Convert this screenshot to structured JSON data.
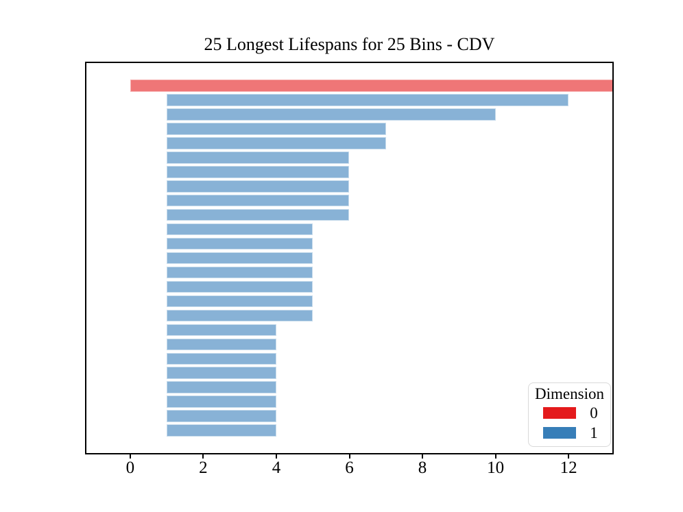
{
  "figure": {
    "background": "#ffffff"
  },
  "chart_data": {
    "type": "bar",
    "orientation": "horizontal",
    "title": "25 Longest Lifespans for 25 Bins - CDV",
    "xlabel": "",
    "ylabel": "",
    "xlim": [
      -1.2,
      13.2
    ],
    "x_ticks": [
      0,
      2,
      4,
      6,
      8,
      10,
      12
    ],
    "y_ticks": [],
    "grid": false,
    "n_bars": 25,
    "bars_note": "bars are [start,end] lifespan intervals, longest to shortest top-to-bottom; first bar is dimension 0 and is clipped at the right plot edge",
    "bars": [
      {
        "dimension": 0,
        "start": 0,
        "end": 13.2,
        "clipped": true
      },
      {
        "dimension": 1,
        "start": 1,
        "end": 12
      },
      {
        "dimension": 1,
        "start": 1,
        "end": 10
      },
      {
        "dimension": 1,
        "start": 1,
        "end": 7
      },
      {
        "dimension": 1,
        "start": 1,
        "end": 7
      },
      {
        "dimension": 1,
        "start": 1,
        "end": 6
      },
      {
        "dimension": 1,
        "start": 1,
        "end": 6
      },
      {
        "dimension": 1,
        "start": 1,
        "end": 6
      },
      {
        "dimension": 1,
        "start": 1,
        "end": 6
      },
      {
        "dimension": 1,
        "start": 1,
        "end": 6
      },
      {
        "dimension": 1,
        "start": 1,
        "end": 5
      },
      {
        "dimension": 1,
        "start": 1,
        "end": 5
      },
      {
        "dimension": 1,
        "start": 1,
        "end": 5
      },
      {
        "dimension": 1,
        "start": 1,
        "end": 5
      },
      {
        "dimension": 1,
        "start": 1,
        "end": 5
      },
      {
        "dimension": 1,
        "start": 1,
        "end": 5
      },
      {
        "dimension": 1,
        "start": 1,
        "end": 5
      },
      {
        "dimension": 1,
        "start": 1,
        "end": 4
      },
      {
        "dimension": 1,
        "start": 1,
        "end": 4
      },
      {
        "dimension": 1,
        "start": 1,
        "end": 4
      },
      {
        "dimension": 1,
        "start": 1,
        "end": 4
      },
      {
        "dimension": 1,
        "start": 1,
        "end": 4
      },
      {
        "dimension": 1,
        "start": 1,
        "end": 4
      },
      {
        "dimension": 1,
        "start": 1,
        "end": 4
      },
      {
        "dimension": 1,
        "start": 1,
        "end": 4
      }
    ],
    "bar_fill_colors": {
      "0": "#ef7677",
      "1": "#88b2d6"
    },
    "bar_edge_colors": {
      "0": "#f7b2b2",
      "1": "#c8dcec"
    },
    "legend": {
      "title": "Dimension",
      "position": "lower right",
      "entries": [
        {
          "label": "0",
          "color": "#e41a1c"
        },
        {
          "label": "1",
          "color": "#377eb8"
        }
      ]
    },
    "axis_color": "#000000",
    "tick_label_color": "#000000"
  }
}
